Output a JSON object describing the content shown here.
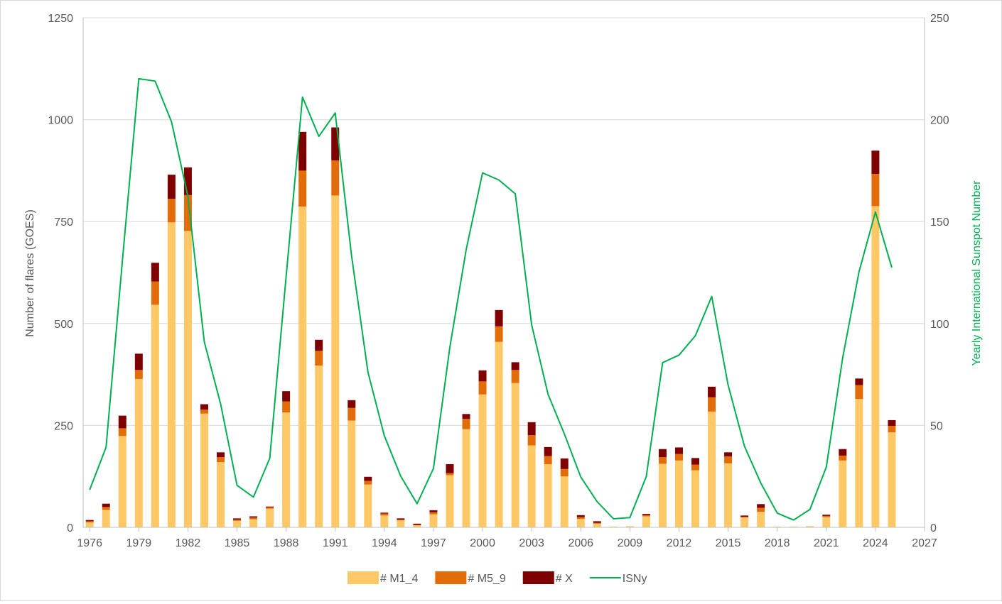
{
  "chart_data": {
    "type": "bar",
    "stacked": true,
    "title": "",
    "xlabel": "",
    "ylabel": "Number of flares (GOES)",
    "y2label": "Yearly International Sunspot Number",
    "ylim": [
      0,
      1250
    ],
    "y2lim": [
      0,
      250
    ],
    "xlim": [
      1975.6,
      2027
    ],
    "yticks": [
      0,
      250,
      500,
      750,
      1000,
      1250
    ],
    "y2ticks": [
      0,
      50,
      100,
      150,
      200,
      250
    ],
    "xticks": [
      1976,
      1979,
      1982,
      1985,
      1988,
      1991,
      1994,
      1997,
      2000,
      2003,
      2006,
      2009,
      2012,
      2015,
      2018,
      2021,
      2024,
      2027
    ],
    "grid": "horizontal",
    "legend_position": "bottom",
    "x": [
      1976,
      1977,
      1978,
      1979,
      1980,
      1981,
      1982,
      1983,
      1984,
      1985,
      1986,
      1987,
      1988,
      1989,
      1990,
      1991,
      1992,
      1993,
      1994,
      1995,
      1996,
      1997,
      1998,
      1999,
      2000,
      2001,
      2002,
      2003,
      2004,
      2005,
      2006,
      2007,
      2008,
      2009,
      2010,
      2011,
      2012,
      2013,
      2014,
      2015,
      2016,
      2017,
      2018,
      2019,
      2020,
      2021,
      2022,
      2023,
      2024,
      2025
    ],
    "series": [
      {
        "name": "# M1_4",
        "type": "bar",
        "color": "#FFC866",
        "values": [
          12,
          43,
          224,
          364,
          546,
          748,
          727,
          279,
          160,
          16,
          20,
          46,
          282,
          787,
          397,
          814,
          262,
          105,
          29,
          17,
          5,
          32,
          128,
          241,
          326,
          455,
          354,
          201,
          155,
          125,
          21,
          9,
          2,
          3,
          27,
          156,
          164,
          140,
          284,
          157,
          24,
          38,
          2,
          2,
          3,
          25,
          164,
          315,
          788,
          233
        ]
      },
      {
        "name": "# M5_9",
        "type": "bar",
        "color": "#E36C0A",
        "values": [
          3,
          7,
          19,
          22,
          57,
          58,
          88,
          10,
          12,
          3,
          4,
          3,
          27,
          88,
          36,
          86,
          31,
          9,
          5,
          2,
          1,
          5,
          5,
          25,
          32,
          38,
          32,
          25,
          20,
          18,
          4,
          2,
          0,
          0,
          3,
          16,
          16,
          14,
          35,
          17,
          2,
          10,
          0,
          0,
          0,
          3,
          12,
          34,
          79,
          16
        ]
      },
      {
        "name": "# X",
        "type": "bar",
        "color": "#7F0000",
        "values": [
          3,
          8,
          31,
          40,
          46,
          59,
          68,
          13,
          12,
          3,
          3,
          2,
          25,
          95,
          27,
          81,
          19,
          10,
          2,
          3,
          3,
          5,
          22,
          12,
          27,
          40,
          19,
          32,
          22,
          26,
          5,
          4,
          0,
          0,
          3,
          20,
          16,
          16,
          26,
          10,
          3,
          9,
          0,
          0,
          0,
          3,
          16,
          16,
          57,
          14
        ]
      },
      {
        "name": "ISNy",
        "type": "line",
        "axis": "secondary",
        "color": "#00B050",
        "values": [
          18.4,
          39.3,
          131.0,
          220.1,
          218.9,
          198.9,
          162.4,
          91.0,
          60.5,
          20.6,
          14.8,
          33.9,
          123.0,
          211.1,
          191.8,
          203.3,
          133.0,
          76.1,
          44.9,
          25.1,
          11.6,
          28.9,
          88.3,
          136.3,
          173.9,
          170.4,
          163.6,
          99.3,
          65.3,
          45.8,
          24.7,
          12.6,
          4.2,
          4.8,
          24.9,
          80.8,
          84.5,
          94.0,
          113.3,
          69.8,
          39.8,
          21.7,
          7.0,
          3.6,
          8.8,
          29.6,
          83.2,
          125.5,
          154.7,
          127.5
        ]
      }
    ]
  }
}
